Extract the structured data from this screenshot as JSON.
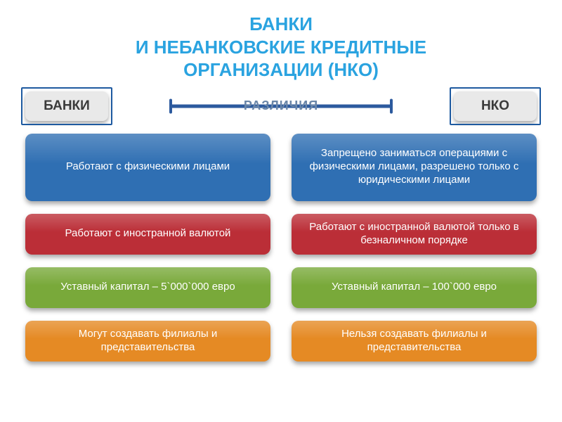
{
  "title": {
    "line1": "БАНКИ",
    "line2": "И НЕБАНКОВСКИЕ КРЕДИТНЫЕ",
    "line3": "ОРГАНИЗАЦИИ (НКО)",
    "color": "#2aa3e0",
    "fontsize": 26
  },
  "header": {
    "left": {
      "label": "БАНКИ",
      "bg": "#e9e9e9",
      "text": "#3a3a3a",
      "frame": "#1e5aa0"
    },
    "right": {
      "label": "НКО",
      "bg": "#e9e9e9",
      "text": "#3a3a3a",
      "frame": "#1e5aa0"
    },
    "divider": {
      "label": "РАЗЛИЧИЯ",
      "line_color": "#2c5a9e",
      "label_color": "#6a86a8",
      "thickness": 5,
      "label_fontsize": 18
    }
  },
  "columns": {
    "left": [
      {
        "text": "Работают с физическими лицами",
        "bg": "#2f6fb3"
      },
      {
        "text": "Работают с иностранной валютой",
        "bg": "#bb2e37"
      },
      {
        "text": "Уставный капитал – 5`000`000 евро",
        "bg": "#79a93a"
      },
      {
        "text": "Могут создавать филиалы и представительства",
        "bg": "#e58a24"
      }
    ],
    "right": [
      {
        "text": "Запрещено заниматься операциями с физическими лицами,  разрешено только с юридическими лицами",
        "bg": "#2f6fb3"
      },
      {
        "text": "Работают с иностранной валютой только в безналичном порядке",
        "bg": "#bb2e37"
      },
      {
        "text": "Уставный капитал – 100`000 евро",
        "bg": "#79a93a"
      },
      {
        "text": "Нельзя создавать филиалы и представительства",
        "bg": "#e58a24"
      }
    ],
    "card_fontsize": 15
  },
  "layout": {
    "tab_fontsize": 19
  }
}
